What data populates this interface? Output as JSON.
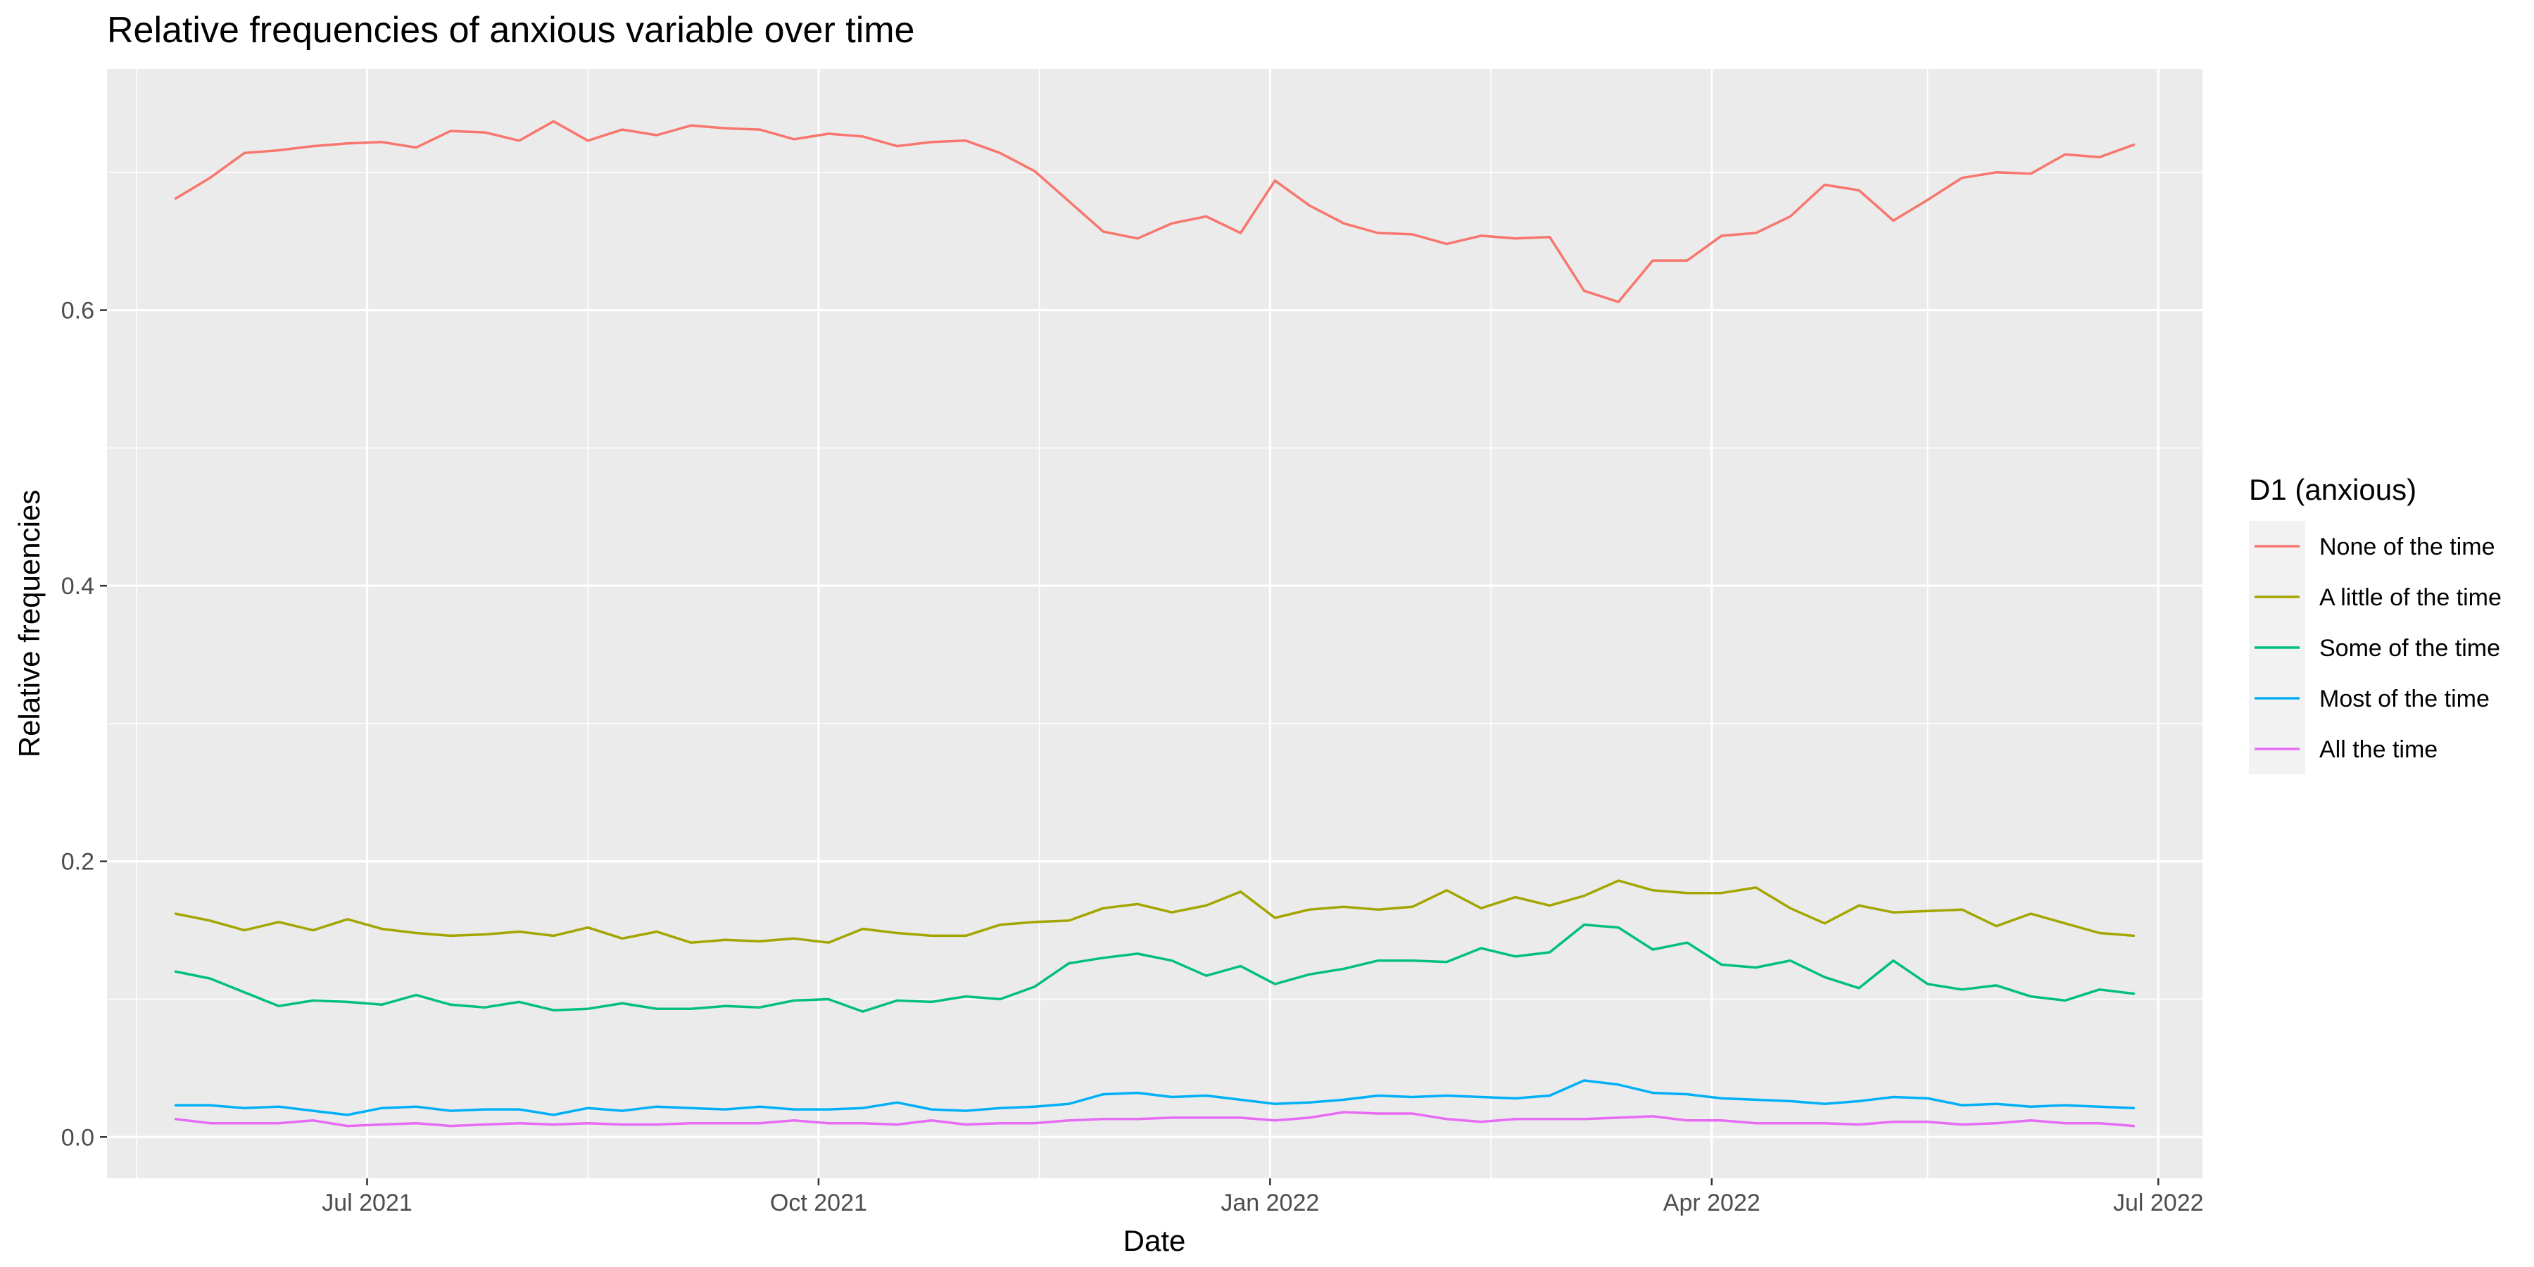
{
  "chart_data": {
    "type": "line",
    "title": "Relative frequencies of anxious variable over time",
    "xlabel": "Date",
    "ylabel": "Relative frequencies",
    "xlim": [
      "2021-05-09",
      "2022-07-10"
    ],
    "ylim": [
      -0.03,
      0.775
    ],
    "x_ticks": [
      {
        "date": "2021-07-01",
        "label": "Jul 2021"
      },
      {
        "date": "2021-10-01",
        "label": "Oct 2021"
      },
      {
        "date": "2022-01-01",
        "label": "Jan 2022"
      },
      {
        "date": "2022-04-01",
        "label": "Apr 2022"
      },
      {
        "date": "2022-07-01",
        "label": "Jul 2022"
      }
    ],
    "x_minor_ticks": [
      "2021-05-15",
      "2021-08-15",
      "2021-11-15",
      "2022-02-15",
      "2022-05-15"
    ],
    "y_ticks": [
      0.0,
      0.2,
      0.4,
      0.6
    ],
    "y_tick_labels": [
      "0.0",
      "0.2",
      "0.4",
      "0.6"
    ],
    "y_minor_ticks": [
      0.1,
      0.3,
      0.5,
      0.7
    ],
    "grid": true,
    "legend": {
      "title": "D1 (anxious)",
      "position": "right"
    },
    "x": [
      "2021-05-23",
      "2021-05-30",
      "2021-06-06",
      "2021-06-13",
      "2021-06-20",
      "2021-06-27",
      "2021-07-04",
      "2021-07-11",
      "2021-07-18",
      "2021-07-25",
      "2021-08-01",
      "2021-08-08",
      "2021-08-15",
      "2021-08-22",
      "2021-08-29",
      "2021-09-05",
      "2021-09-12",
      "2021-09-19",
      "2021-09-26",
      "2021-10-03",
      "2021-10-10",
      "2021-10-17",
      "2021-10-24",
      "2021-10-31",
      "2021-11-07",
      "2021-11-14",
      "2021-11-21",
      "2021-11-28",
      "2021-12-05",
      "2021-12-12",
      "2021-12-19",
      "2021-12-26",
      "2022-01-02",
      "2022-01-09",
      "2022-01-16",
      "2022-01-23",
      "2022-01-30",
      "2022-02-06",
      "2022-02-13",
      "2022-02-20",
      "2022-02-27",
      "2022-03-06",
      "2022-03-13",
      "2022-03-20",
      "2022-03-27",
      "2022-04-03",
      "2022-04-10",
      "2022-04-17",
      "2022-04-24",
      "2022-05-01",
      "2022-05-08",
      "2022-05-15",
      "2022-05-22",
      "2022-05-29",
      "2022-06-05",
      "2022-06-12",
      "2022-06-19",
      "2022-06-26"
    ],
    "series": [
      {
        "name": "None of the time",
        "color": "#F8766D",
        "values": [
          0.681,
          0.696,
          0.714,
          0.716,
          0.719,
          0.721,
          0.722,
          0.718,
          0.73,
          0.729,
          0.723,
          0.737,
          0.723,
          0.731,
          0.727,
          0.734,
          0.732,
          0.731,
          0.724,
          0.728,
          0.726,
          0.719,
          0.722,
          0.723,
          0.714,
          0.701,
          0.679,
          0.657,
          0.652,
          0.663,
          0.668,
          0.656,
          0.694,
          0.676,
          0.663,
          0.656,
          0.655,
          0.648,
          0.654,
          0.652,
          0.653,
          0.614,
          0.606,
          0.636,
          0.636,
          0.654,
          0.656,
          0.668,
          0.691,
          0.687,
          0.665,
          0.68,
          0.696,
          0.7,
          0.699,
          0.713,
          0.711,
          0.72
        ]
      },
      {
        "name": "A little of the time",
        "color": "#A3A500",
        "values": [
          0.162,
          0.157,
          0.15,
          0.156,
          0.15,
          0.158,
          0.151,
          0.148,
          0.146,
          0.147,
          0.149,
          0.146,
          0.152,
          0.144,
          0.149,
          0.141,
          0.143,
          0.142,
          0.144,
          0.141,
          0.151,
          0.148,
          0.146,
          0.146,
          0.154,
          0.156,
          0.157,
          0.166,
          0.169,
          0.163,
          0.168,
          0.178,
          0.159,
          0.165,
          0.167,
          0.165,
          0.167,
          0.179,
          0.166,
          0.174,
          0.168,
          0.175,
          0.186,
          0.179,
          0.177,
          0.177,
          0.181,
          0.166,
          0.155,
          0.168,
          0.163,
          0.164,
          0.165,
          0.153,
          0.162,
          0.155,
          0.148,
          0.146
        ]
      },
      {
        "name": "Some of the time",
        "color": "#00BF7D",
        "values": [
          0.12,
          0.115,
          0.105,
          0.095,
          0.099,
          0.098,
          0.096,
          0.103,
          0.096,
          0.094,
          0.098,
          0.092,
          0.093,
          0.097,
          0.093,
          0.093,
          0.095,
          0.094,
          0.099,
          0.1,
          0.091,
          0.099,
          0.098,
          0.102,
          0.1,
          0.109,
          0.126,
          0.13,
          0.133,
          0.128,
          0.117,
          0.124,
          0.111,
          0.118,
          0.122,
          0.128,
          0.128,
          0.127,
          0.137,
          0.131,
          0.134,
          0.154,
          0.152,
          0.136,
          0.141,
          0.125,
          0.123,
          0.128,
          0.116,
          0.108,
          0.128,
          0.111,
          0.107,
          0.11,
          0.102,
          0.099,
          0.107,
          0.104
        ]
      },
      {
        "name": "Most of the time",
        "color": "#00B0F6",
        "values": [
          0.023,
          0.023,
          0.021,
          0.022,
          0.019,
          0.016,
          0.021,
          0.022,
          0.019,
          0.02,
          0.02,
          0.016,
          0.021,
          0.019,
          0.022,
          0.021,
          0.02,
          0.022,
          0.02,
          0.02,
          0.021,
          0.025,
          0.02,
          0.019,
          0.021,
          0.022,
          0.024,
          0.031,
          0.032,
          0.029,
          0.03,
          0.027,
          0.024,
          0.025,
          0.027,
          0.03,
          0.029,
          0.03,
          0.029,
          0.028,
          0.03,
          0.041,
          0.038,
          0.032,
          0.031,
          0.028,
          0.027,
          0.026,
          0.024,
          0.026,
          0.029,
          0.028,
          0.023,
          0.024,
          0.022,
          0.023,
          0.022,
          0.021
        ]
      },
      {
        "name": "All the time",
        "color": "#E76BF3",
        "values": [
          0.013,
          0.01,
          0.01,
          0.01,
          0.012,
          0.008,
          0.009,
          0.01,
          0.008,
          0.009,
          0.01,
          0.009,
          0.01,
          0.009,
          0.009,
          0.01,
          0.01,
          0.01,
          0.012,
          0.01,
          0.01,
          0.009,
          0.012,
          0.009,
          0.01,
          0.01,
          0.012,
          0.013,
          0.013,
          0.014,
          0.014,
          0.014,
          0.012,
          0.014,
          0.018,
          0.017,
          0.017,
          0.013,
          0.011,
          0.013,
          0.013,
          0.013,
          0.014,
          0.015,
          0.012,
          0.012,
          0.01,
          0.01,
          0.01,
          0.009,
          0.011,
          0.011,
          0.009,
          0.01,
          0.012,
          0.01,
          0.01,
          0.008
        ]
      }
    ]
  }
}
